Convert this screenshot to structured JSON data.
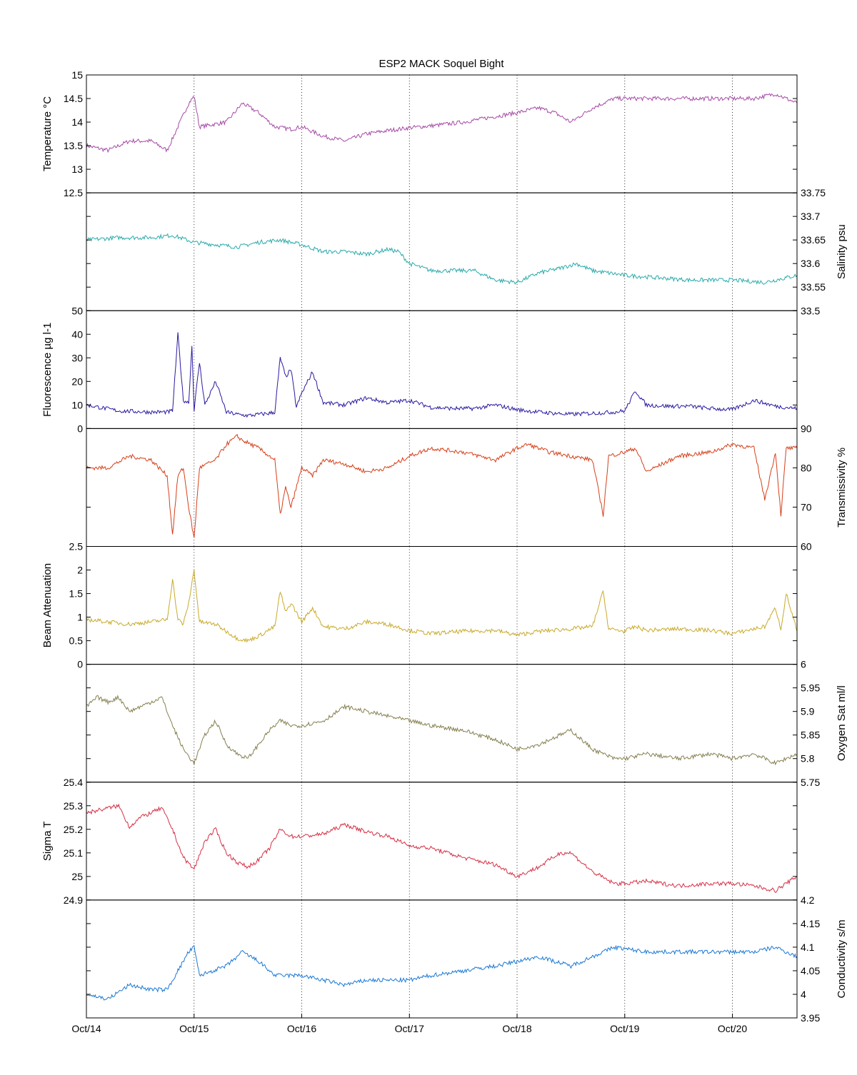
{
  "chart_data": {
    "type": "line",
    "title": "ESP2 MACK  Soquel Bight",
    "x_tick_labels": [
      "Oct/14",
      "Oct/15",
      "Oct/16",
      "Oct/17",
      "Oct/18",
      "Oct/19",
      "Oct/20"
    ],
    "x_tick_values": [
      0,
      1,
      2,
      3,
      4,
      5,
      6
    ],
    "xlim": [
      0,
      6.6
    ],
    "x_units": "days since Oct/14",
    "vertical_grid": "dotted at each day",
    "panels": [
      {
        "ylabel": "Temperature °C",
        "side": "left",
        "color": "#a54aa5",
        "ylim": [
          12.5,
          15
        ],
        "ticks": [
          12.5,
          13,
          13.5,
          14,
          14.5,
          15
        ],
        "tick_labels": [
          "12.5",
          "13",
          "13.5",
          "14",
          "14.5",
          "15"
        ],
        "x": [
          0,
          0.2,
          0.4,
          0.6,
          0.75,
          0.85,
          0.95,
          1.0,
          1.05,
          1.3,
          1.45,
          1.6,
          1.75,
          1.9,
          2.0,
          2.2,
          2.4,
          2.6,
          2.8,
          3.0,
          3.2,
          3.5,
          3.8,
          4.0,
          4.2,
          4.35,
          4.5,
          4.7,
          4.9,
          5.2,
          5.5,
          5.8,
          6.0,
          6.2,
          6.4,
          6.6
        ],
        "y": [
          13.5,
          13.4,
          13.6,
          13.6,
          13.4,
          13.9,
          14.4,
          14.55,
          13.9,
          14.0,
          14.4,
          14.2,
          13.9,
          13.85,
          13.9,
          13.7,
          13.6,
          13.75,
          13.82,
          13.88,
          13.92,
          14.0,
          14.12,
          14.2,
          14.3,
          14.2,
          14.0,
          14.3,
          14.5,
          14.5,
          14.5,
          14.5,
          14.5,
          14.5,
          14.6,
          14.4
        ]
      },
      {
        "ylabel": "Salinity psu",
        "side": "right",
        "color": "#2aaaaa",
        "ylim": [
          33.5,
          33.75
        ],
        "ticks": [
          33.5,
          33.55,
          33.6,
          33.65,
          33.7,
          33.75
        ],
        "tick_labels": [
          "33.5",
          "33.55",
          "33.6",
          "33.65",
          "33.7",
          "33.75"
        ],
        "x": [
          0,
          0.3,
          0.6,
          0.8,
          1.0,
          1.2,
          1.4,
          1.6,
          1.8,
          2.0,
          2.2,
          2.4,
          2.6,
          2.8,
          2.9,
          3.0,
          3.2,
          3.4,
          3.6,
          3.8,
          4.0,
          4.2,
          4.4,
          4.55,
          4.7,
          5.0,
          5.3,
          5.6,
          6.0,
          6.3,
          6.6
        ],
        "y": [
          33.65,
          33.655,
          33.655,
          33.66,
          33.645,
          33.64,
          33.635,
          33.645,
          33.65,
          33.64,
          33.625,
          33.625,
          33.62,
          33.63,
          33.625,
          33.6,
          33.585,
          33.585,
          33.585,
          33.565,
          33.56,
          33.58,
          33.59,
          33.6,
          33.585,
          33.575,
          33.57,
          33.565,
          33.565,
          33.56,
          33.575
        ]
      },
      {
        "ylabel": "Fluorescence µg l-1",
        "side": "left",
        "color": "#2a1aa0",
        "ylim": [
          0,
          50
        ],
        "ticks": [
          0,
          10,
          20,
          30,
          40,
          50
        ],
        "tick_labels": [
          "0",
          "10",
          "20",
          "30",
          "40",
          "50"
        ],
        "x": [
          0,
          0.3,
          0.6,
          0.75,
          0.8,
          0.85,
          0.9,
          0.95,
          0.98,
          1.0,
          1.05,
          1.1,
          1.2,
          1.3,
          1.4,
          1.5,
          1.6,
          1.7,
          1.75,
          1.8,
          1.85,
          1.9,
          1.95,
          2.0,
          2.1,
          2.2,
          2.4,
          2.6,
          2.8,
          3.0,
          3.2,
          3.4,
          3.6,
          3.8,
          4.0,
          4.2,
          4.5,
          4.7,
          4.9,
          5.0,
          5.1,
          5.2,
          5.4,
          5.6,
          5.8,
          6.0,
          6.2,
          6.4,
          6.6
        ],
        "y": [
          10,
          7.5,
          7,
          7,
          7.5,
          40,
          12,
          11,
          35,
          8,
          28,
          10,
          20,
          7,
          6,
          5.5,
          6,
          6.5,
          7,
          30,
          22,
          25,
          9,
          15,
          24,
          11,
          10,
          13,
          11,
          12,
          9,
          8.5,
          8.5,
          10,
          8,
          7,
          6,
          6.5,
          7,
          7.5,
          16,
          10,
          9.5,
          9.5,
          8.5,
          8,
          12,
          9.5,
          8.5
        ]
      },
      {
        "ylabel": "Transmissivity %",
        "side": "right",
        "color": "#d5401a",
        "ylim": [
          60,
          90
        ],
        "ticks": [
          60,
          70,
          80,
          90
        ],
        "tick_labels": [
          "60",
          "70",
          "80",
          "90"
        ],
        "x": [
          0,
          0.2,
          0.4,
          0.6,
          0.75,
          0.8,
          0.85,
          0.9,
          0.95,
          1.0,
          1.05,
          1.2,
          1.3,
          1.4,
          1.45,
          1.6,
          1.75,
          1.8,
          1.85,
          1.9,
          2.0,
          2.1,
          2.2,
          2.4,
          2.6,
          2.8,
          3.0,
          3.2,
          3.5,
          3.8,
          4.0,
          4.1,
          4.3,
          4.5,
          4.7,
          4.8,
          4.85,
          5.0,
          5.1,
          5.2,
          5.5,
          5.8,
          6.0,
          6.2,
          6.3,
          6.4,
          6.45,
          6.5,
          6.6
        ],
        "y": [
          80,
          80,
          83,
          82,
          78,
          63,
          78,
          80,
          70,
          62,
          80,
          82,
          86,
          88,
          87,
          85,
          82,
          68,
          75,
          70,
          80,
          78,
          82,
          81,
          79,
          80,
          83,
          85,
          84,
          82,
          85,
          86,
          84,
          83,
          82,
          68,
          83,
          84,
          85,
          79,
          83,
          84,
          86,
          85,
          72,
          84,
          68,
          85,
          85
        ]
      },
      {
        "ylabel": "Beam Attenuation",
        "side": "left",
        "color": "#c8aa2a",
        "ylim": [
          0,
          2.5
        ],
        "ticks": [
          0,
          0.5,
          1,
          1.5,
          2,
          2.5
        ],
        "tick_labels": [
          "0",
          "0.5",
          "1",
          "1.5",
          "2",
          "2.5"
        ],
        "x": [
          0,
          0.2,
          0.4,
          0.6,
          0.75,
          0.8,
          0.85,
          0.9,
          0.95,
          1.0,
          1.05,
          1.2,
          1.3,
          1.4,
          1.5,
          1.6,
          1.75,
          1.8,
          1.85,
          1.9,
          2.0,
          2.1,
          2.2,
          2.4,
          2.6,
          2.8,
          3.0,
          3.2,
          3.5,
          3.8,
          4.0,
          4.2,
          4.5,
          4.7,
          4.8,
          4.85,
          5.0,
          5.1,
          5.2,
          5.5,
          5.8,
          6.0,
          6.2,
          6.3,
          6.4,
          6.45,
          6.5,
          6.6
        ],
        "y": [
          0.95,
          0.9,
          0.85,
          0.9,
          0.95,
          1.8,
          0.95,
          0.85,
          1.3,
          2.0,
          0.9,
          0.85,
          0.7,
          0.55,
          0.5,
          0.6,
          0.8,
          1.55,
          1.1,
          1.3,
          0.9,
          1.2,
          0.8,
          0.75,
          0.9,
          0.85,
          0.72,
          0.65,
          0.7,
          0.72,
          0.62,
          0.7,
          0.75,
          0.8,
          1.55,
          0.75,
          0.7,
          0.8,
          0.72,
          0.75,
          0.72,
          0.65,
          0.75,
          0.8,
          1.2,
          0.75,
          1.5,
          0.7
        ]
      },
      {
        "ylabel": "Oxygen Sat ml/l",
        "side": "right",
        "color": "#858050",
        "ylim": [
          5.75,
          6
        ],
        "ticks": [
          5.75,
          5.8,
          5.85,
          5.9,
          5.95,
          6
        ],
        "tick_labels": [
          "5.75",
          "5.8",
          "5.85",
          "5.9",
          "5.95",
          "6"
        ],
        "x": [
          0,
          0.1,
          0.2,
          0.3,
          0.4,
          0.5,
          0.6,
          0.7,
          0.8,
          0.9,
          1.0,
          1.1,
          1.2,
          1.3,
          1.4,
          1.5,
          1.6,
          1.7,
          1.8,
          1.9,
          2.0,
          2.2,
          2.4,
          2.6,
          2.8,
          3.0,
          3.2,
          3.5,
          3.8,
          4.0,
          4.2,
          4.4,
          4.5,
          4.7,
          4.9,
          5.0,
          5.2,
          5.5,
          5.8,
          6.0,
          6.2,
          6.4,
          6.6
        ],
        "y": [
          5.91,
          5.93,
          5.92,
          5.93,
          5.9,
          5.91,
          5.92,
          5.93,
          5.87,
          5.82,
          5.79,
          5.85,
          5.88,
          5.83,
          5.81,
          5.8,
          5.83,
          5.86,
          5.88,
          5.87,
          5.87,
          5.88,
          5.91,
          5.9,
          5.89,
          5.88,
          5.87,
          5.86,
          5.84,
          5.82,
          5.83,
          5.85,
          5.86,
          5.82,
          5.8,
          5.8,
          5.81,
          5.8,
          5.81,
          5.8,
          5.81,
          5.79,
          5.81
        ]
      },
      {
        "ylabel": "Sigma T",
        "side": "left",
        "color": "#d53045",
        "ylim": [
          24.9,
          25.4
        ],
        "ticks": [
          24.9,
          25,
          25.1,
          25.2,
          25.3,
          25.4
        ],
        "tick_labels": [
          "24.9",
          "25",
          "25.1",
          "25.2",
          "25.3",
          "25.4"
        ],
        "x": [
          0,
          0.1,
          0.2,
          0.3,
          0.4,
          0.5,
          0.6,
          0.7,
          0.8,
          0.9,
          1.0,
          1.1,
          1.2,
          1.3,
          1.4,
          1.5,
          1.6,
          1.7,
          1.8,
          1.9,
          2.0,
          2.2,
          2.4,
          2.6,
          2.8,
          3.0,
          3.2,
          3.5,
          3.8,
          4.0,
          4.2,
          4.4,
          4.5,
          4.7,
          4.9,
          5.0,
          5.2,
          5.5,
          5.8,
          6.0,
          6.2,
          6.4,
          6.6
        ],
        "y": [
          25.27,
          25.28,
          25.29,
          25.3,
          25.21,
          25.25,
          25.27,
          25.29,
          25.2,
          25.08,
          25.03,
          25.15,
          25.2,
          25.1,
          25.06,
          25.04,
          25.07,
          25.12,
          25.2,
          25.17,
          25.17,
          25.18,
          25.22,
          25.19,
          25.17,
          25.13,
          25.12,
          25.08,
          25.05,
          25.0,
          25.04,
          25.1,
          25.1,
          25.02,
          24.97,
          24.97,
          24.98,
          24.96,
          24.97,
          24.97,
          24.96,
          24.94,
          25.0
        ]
      },
      {
        "ylabel": "Conductivity s/m",
        "side": "right",
        "color": "#1a78d5",
        "ylim": [
          3.95,
          4.2
        ],
        "ticks": [
          3.95,
          4,
          4.05,
          4.1,
          4.15,
          4.2
        ],
        "tick_labels": [
          "3.95",
          "4",
          "4.05",
          "4.1",
          "4.15",
          "4.2"
        ],
        "x": [
          0,
          0.2,
          0.4,
          0.6,
          0.75,
          0.85,
          0.95,
          1.0,
          1.05,
          1.3,
          1.45,
          1.6,
          1.75,
          1.9,
          2.0,
          2.2,
          2.4,
          2.6,
          2.8,
          3.0,
          3.2,
          3.5,
          3.8,
          4.0,
          4.2,
          4.35,
          4.5,
          4.7,
          4.9,
          5.2,
          5.5,
          5.8,
          6.0,
          6.2,
          6.4,
          6.6
        ],
        "y": [
          4.0,
          3.99,
          4.02,
          4.01,
          4.01,
          4.05,
          4.09,
          4.1,
          4.04,
          4.06,
          4.09,
          4.07,
          4.04,
          4.04,
          4.04,
          4.03,
          4.02,
          4.03,
          4.03,
          4.03,
          4.04,
          4.05,
          4.06,
          4.07,
          4.08,
          4.07,
          4.06,
          4.08,
          4.1,
          4.09,
          4.09,
          4.09,
          4.09,
          4.09,
          4.1,
          4.08
        ]
      }
    ]
  }
}
